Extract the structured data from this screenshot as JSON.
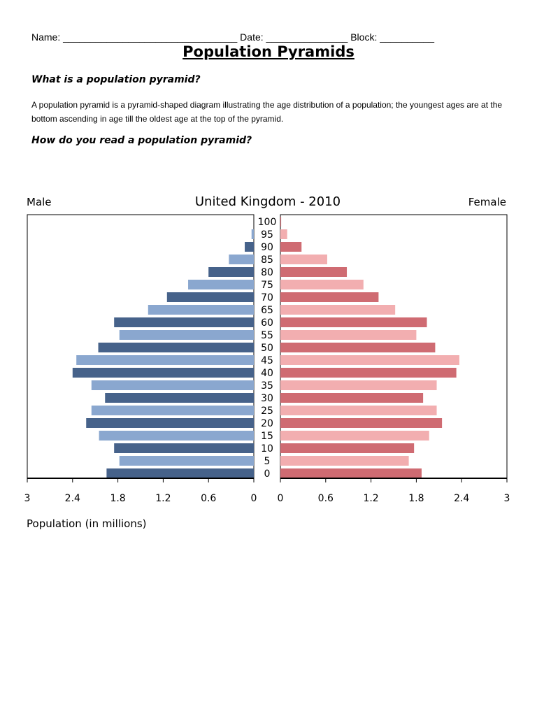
{
  "worksheet": {
    "header_line": "Name: ________________________________ Date: _______________ Block: __________",
    "title": "Population Pyramids",
    "question1": "What is a population pyramid?",
    "paragraph": "A population pyramid is a pyramid-shaped diagram illustrating the age distribution of a population; the youngest ages are at the bottom ascending in age till the oldest age at the top of the pyramid.",
    "question2": "How do you read a population pyramid?"
  },
  "colors": {
    "male_dark": "#46628a",
    "male_light": "#8aa7cf",
    "female_dark": "#cf6b72",
    "female_light": "#f2aeb0"
  },
  "chart_data": {
    "type": "bar",
    "title": "United Kingdom - 2010",
    "left_label": "Male",
    "right_label": "Female",
    "xlabel": "Population (in millions)",
    "xlim": [
      0,
      3
    ],
    "x_ticks": [
      "0",
      "0.6",
      "1.2",
      "1.8",
      "2.4",
      "3"
    ],
    "categories": [
      "0",
      "5",
      "10",
      "15",
      "20",
      "25",
      "30",
      "35",
      "40",
      "45",
      "50",
      "55",
      "60",
      "65",
      "70",
      "75",
      "80",
      "85",
      "90",
      "95",
      "100"
    ],
    "series": [
      {
        "name": "Male",
        "values": [
          1.95,
          1.78,
          1.85,
          2.05,
          2.22,
          2.15,
          1.97,
          2.15,
          2.4,
          2.35,
          2.06,
          1.78,
          1.85,
          1.4,
          1.15,
          0.87,
          0.6,
          0.33,
          0.12,
          0.03,
          0.0
        ]
      },
      {
        "name": "Female",
        "values": [
          1.87,
          1.7,
          1.77,
          1.97,
          2.14,
          2.07,
          1.89,
          2.07,
          2.33,
          2.37,
          2.05,
          1.8,
          1.94,
          1.52,
          1.3,
          1.1,
          0.88,
          0.62,
          0.28,
          0.09,
          0.01
        ]
      }
    ]
  }
}
